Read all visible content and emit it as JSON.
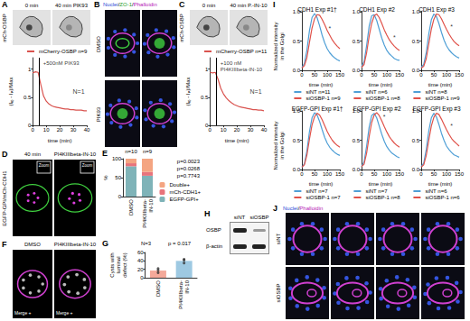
{
  "images": [
    {
      "panel": "A",
      "channel": "mCh-OSBP",
      "frames": [
        "0 min",
        "40 min PIK93"
      ]
    },
    {
      "panel": "B",
      "title": "Nuclei/ZO-1/Phalloidin",
      "rows": [
        "DMSO",
        "PIK93"
      ]
    },
    {
      "panel": "C",
      "channel": "mCh-OSBP",
      "frames": [
        "0 min",
        "40 min P.-IN-10"
      ]
    },
    {
      "panel": "D",
      "channel": "EGFP-GPI/mCh-CDH1",
      "frames": [
        "40 min",
        "PI4KIIIbeta-IN-10"
      ],
      "inset": "Zoom"
    },
    {
      "panel": "F",
      "frames": [
        "DMSO",
        "PI4KIIIbeta-IN-10"
      ],
      "inset": "Merge +"
    },
    {
      "panel": "H",
      "columns": [
        "siNT",
        "siOSBP"
      ],
      "rows": [
        "OSBP",
        "β-actin"
      ]
    },
    {
      "panel": "J",
      "title": "Nuclei/Phalloidin",
      "rows": [
        "siNT",
        "siOSBP"
      ]
    }
  ],
  "chart_data": [
    {
      "type": "line",
      "xlabel": "time (min)",
      "ylabel": "(Iₜ₀ - Iₜₓ)/Max",
      "x": [
        0,
        2,
        4,
        6,
        8,
        10,
        12,
        14,
        16,
        18,
        20,
        22,
        24,
        26,
        28,
        30,
        32,
        34,
        36,
        38,
        40
      ],
      "xlim": [
        0,
        40
      ],
      "xticks": [
        0,
        10,
        20,
        30,
        40
      ],
      "ylim": [
        0,
        1.2
      ],
      "yticks": [
        0,
        0.5,
        1
      ],
      "series": [
        {
          "name": "mCherry-OSBP n=9",
          "color": "#d9534f",
          "values": [
            0.93,
            0.95,
            0.94,
            0.72,
            0.52,
            0.43,
            0.38,
            0.35,
            0.33,
            0.32,
            0.31,
            0.3,
            0.29,
            0.29,
            0.28,
            0.28,
            0.27,
            0.27,
            0.27,
            0.26,
            0.26
          ]
        }
      ],
      "event": {
        "x": 5,
        "label": "+500nM PIK93"
      },
      "annotations": [
        {
          "text": "N=1",
          "x": 34,
          "y": 0.6
        }
      ],
      "legend": "top"
    },
    {
      "type": "line",
      "xlabel": "time (min)",
      "ylabel": "(Iₜ₀ - Iₜₓ)/Max",
      "x": [
        0,
        2,
        4,
        6,
        8,
        10,
        12,
        14,
        16,
        18,
        20,
        22,
        24,
        26,
        28,
        30,
        32,
        34,
        36,
        38,
        40
      ],
      "xlim": [
        0,
        40
      ],
      "xticks": [
        0,
        10,
        20,
        30,
        40
      ],
      "ylim": [
        0,
        1.2
      ],
      "yticks": [
        0,
        0.5,
        1
      ],
      "series": [
        {
          "name": "mCherry-OSBP n=11",
          "color": "#d9534f",
          "values": [
            0.94,
            0.93,
            0.94,
            0.82,
            0.66,
            0.56,
            0.49,
            0.44,
            0.4,
            0.37,
            0.35,
            0.33,
            0.32,
            0.31,
            0.3,
            0.29,
            0.28,
            0.28,
            0.27,
            0.27,
            0.26
          ]
        }
      ],
      "event": {
        "x": 5,
        "label": "+100 nM PI4KIIIbeta-IN-10"
      },
      "annotations": [
        {
          "text": "N=1",
          "x": 34,
          "y": 0.6
        }
      ],
      "legend": "top"
    },
    {
      "type": "bar",
      "panel": "E",
      "stacked": true,
      "categories": [
        "DMSO",
        "PI4KIIIbeta-IN-10"
      ],
      "ylabel": "%",
      "ylim": [
        0,
        100
      ],
      "yticks": [
        0,
        50,
        100
      ],
      "series": [
        {
          "name": "EGFP-GPI+",
          "color": "#7fb3b8",
          "values": [
            80,
            55
          ]
        },
        {
          "name": "mCh-CDH1+",
          "color": "#e8747c",
          "values": [
            8,
            10
          ]
        },
        {
          "name": "Double+",
          "color": "#f4a582",
          "values": [
            12,
            35
          ]
        }
      ],
      "bar_labels": [
        "n=10",
        "n=9"
      ],
      "p_values": [
        "p=0.0023",
        "p=0.0268",
        "p=0.7743"
      ],
      "legend": "right"
    },
    {
      "type": "bar",
      "panel": "G",
      "categories": [
        "DMSO",
        "PI4KIIIbeta-IN-10"
      ],
      "values": [
        17,
        40
      ],
      "colors": [
        "#f4a99a",
        "#9ec9e2"
      ],
      "points": [
        [
          12,
          18,
          22
        ],
        [
          35,
          42,
          44
        ]
      ],
      "ylabel": "Cysts with luminal defect (%)",
      "ylim": [
        0,
        60
      ],
      "yticks": [
        0,
        20,
        40,
        60
      ],
      "annotations": [
        "N=3",
        "p = 0.017"
      ]
    },
    {
      "type": "line",
      "panel": "I",
      "title": "CDH1 Exp #1†",
      "xlabel": "time (min)",
      "ylabel": "Normalized intensity in the Golgi",
      "x": [
        0,
        10,
        20,
        30,
        40,
        50,
        60,
        70,
        80,
        90,
        100,
        110,
        120,
        130,
        140,
        150
      ],
      "xlim": [
        0,
        150
      ],
      "xticks": [
        0,
        50,
        100,
        150
      ],
      "ylim": [
        0,
        1
      ],
      "yticks": [
        {
          "value": 0,
          "label": "0.0"
        },
        0.5,
        {
          "value": 1,
          "label": "1.0"
        }
      ],
      "series": [
        {
          "name": "siNT n=11",
          "color": "#4f9fd6",
          "values": [
            0.05,
            0.12,
            0.35,
            0.68,
            0.9,
            0.97,
            0.9,
            0.76,
            0.6,
            0.47,
            0.37,
            0.3,
            0.25,
            0.21,
            0.18,
            0.16
          ]
        },
        {
          "name": "siOSBP-1 n=9",
          "color": "#e0524a",
          "values": [
            0.04,
            0.08,
            0.22,
            0.48,
            0.72,
            0.88,
            0.95,
            0.94,
            0.87,
            0.78,
            0.68,
            0.6,
            0.52,
            0.46,
            0.41,
            0.37
          ]
        }
      ],
      "annotations": [
        {
          "text": "*",
          "x": 110,
          "y": 0.72
        }
      ],
      "legend": "bottom"
    },
    {
      "type": "line",
      "title": "CDH1 Exp #2",
      "xlabel": "time (min)",
      "x": [
        0,
        10,
        20,
        30,
        40,
        50,
        60,
        70,
        80,
        90,
        100,
        110,
        120,
        130,
        140,
        150
      ],
      "xlim": [
        0,
        150
      ],
      "xticks": [
        0,
        50,
        100,
        150
      ],
      "ylim": [
        0,
        1
      ],
      "yticks": [
        {
          "value": 0,
          "label": "0.0"
        },
        0.5,
        {
          "value": 1,
          "label": "1.0"
        }
      ],
      "series": [
        {
          "name": "siNT n=6",
          "color": "#4f9fd6",
          "values": [
            0.06,
            0.15,
            0.42,
            0.75,
            0.93,
            0.95,
            0.85,
            0.7,
            0.55,
            0.43,
            0.34,
            0.28,
            0.24,
            0.2,
            0.18,
            0.17
          ]
        },
        {
          "name": "siOSBP-1 n=8",
          "color": "#e0524a",
          "values": [
            0.05,
            0.1,
            0.3,
            0.58,
            0.8,
            0.93,
            0.96,
            0.9,
            0.8,
            0.69,
            0.6,
            0.52,
            0.46,
            0.41,
            0.37,
            0.34
          ]
        }
      ],
      "annotations": [
        {
          "text": "*",
          "x": 130,
          "y": 0.56
        }
      ],
      "legend": "bottom"
    },
    {
      "type": "line",
      "title": "CDH1 Exp #3",
      "xlabel": "time (min)",
      "x": [
        0,
        10,
        20,
        30,
        40,
        50,
        60,
        70,
        80,
        90,
        100,
        110,
        120,
        130,
        140,
        150
      ],
      "xlim": [
        0,
        150
      ],
      "xticks": [
        0,
        50,
        100,
        150
      ],
      "ylim": [
        0,
        1
      ],
      "yticks": [
        {
          "value": 0,
          "label": "0.0"
        },
        0.5,
        {
          "value": 1,
          "label": "1.0"
        }
      ],
      "series": [
        {
          "name": "siNT n=8",
          "color": "#4f9fd6",
          "values": [
            0.05,
            0.1,
            0.3,
            0.62,
            0.86,
            0.96,
            0.92,
            0.8,
            0.65,
            0.52,
            0.42,
            0.35,
            0.3,
            0.26,
            0.23,
            0.21
          ]
        },
        {
          "name": "siOSBP-1 n=9",
          "color": "#e0524a",
          "values": [
            0.04,
            0.07,
            0.2,
            0.45,
            0.7,
            0.87,
            0.96,
            0.95,
            0.88,
            0.79,
            0.7,
            0.62,
            0.55,
            0.49,
            0.45,
            0.42
          ]
        }
      ],
      "annotations": [
        {
          "text": "*",
          "x": 120,
          "y": 0.75
        }
      ],
      "legend": "bottom"
    },
    {
      "type": "line",
      "title": "EGFP-GPI Exp #1†",
      "xlabel": "time (min)",
      "ylabel": "Normalized intensity in the Golgi",
      "x": [
        0,
        10,
        20,
        30,
        40,
        50,
        60,
        70,
        80,
        90,
        100,
        110,
        120,
        130,
        140,
        150
      ],
      "xlim": [
        0,
        150
      ],
      "xticks": [
        0,
        50,
        100,
        150
      ],
      "ylim": [
        0,
        1
      ],
      "yticks": [
        {
          "value": 0,
          "label": "0.0"
        },
        0.5,
        {
          "value": 1,
          "label": "1.0"
        }
      ],
      "series": [
        {
          "name": "siNT n=7",
          "color": "#4f9fd6",
          "values": [
            0.04,
            0.1,
            0.32,
            0.65,
            0.88,
            0.97,
            0.93,
            0.82,
            0.68,
            0.55,
            0.45,
            0.38,
            0.33,
            0.29,
            0.26,
            0.24
          ]
        },
        {
          "name": "siOSBP-1 n=7",
          "color": "#e0524a",
          "values": [
            0.04,
            0.08,
            0.25,
            0.52,
            0.76,
            0.9,
            0.96,
            0.93,
            0.85,
            0.75,
            0.65,
            0.57,
            0.5,
            0.45,
            0.41,
            0.38
          ]
        }
      ],
      "legend": "bottom"
    },
    {
      "type": "line",
      "title": "EGFP-GPI Exp #2",
      "xlabel": "time (min)",
      "x": [
        0,
        10,
        20,
        30,
        40,
        50,
        60,
        70,
        80,
        90,
        100,
        110,
        120,
        130,
        140,
        150
      ],
      "xlim": [
        0,
        150
      ],
      "xticks": [
        0,
        50,
        100,
        150
      ],
      "ylim": [
        0,
        1
      ],
      "yticks": [
        {
          "value": 0,
          "label": "0.0"
        },
        0.5,
        {
          "value": 1,
          "label": "1.0"
        }
      ],
      "series": [
        {
          "name": "siNT n=7",
          "color": "#4f9fd6",
          "values": [
            0.05,
            0.13,
            0.4,
            0.72,
            0.92,
            0.96,
            0.88,
            0.74,
            0.6,
            0.48,
            0.39,
            0.33,
            0.28,
            0.25,
            0.22,
            0.2
          ]
        },
        {
          "name": "siOSBP-1 n=8",
          "color": "#e0524a",
          "values": [
            0.05,
            0.09,
            0.28,
            0.56,
            0.8,
            0.93,
            0.97,
            0.92,
            0.83,
            0.73,
            0.64,
            0.56,
            0.5,
            0.45,
            0.41,
            0.38
          ]
        }
      ],
      "annotations": [
        {
          "text": "*",
          "x": 90,
          "y": 0.9
        }
      ],
      "legend": "bottom"
    },
    {
      "type": "line",
      "title": "EGFP-GPI Exp #3",
      "xlabel": "time (min)",
      "x": [
        0,
        10,
        20,
        30,
        40,
        50,
        60,
        70,
        80,
        90,
        100,
        110,
        120,
        130,
        140,
        150
      ],
      "xlim": [
        0,
        150
      ],
      "xticks": [
        0,
        50,
        100,
        150
      ],
      "ylim": [
        0,
        1
      ],
      "yticks": [
        {
          "value": 0,
          "label": "0.0"
        },
        0.5,
        {
          "value": 1,
          "label": "1.0"
        }
      ],
      "series": [
        {
          "name": "siNT n=6",
          "color": "#4f9fd6",
          "values": [
            0.05,
            0.11,
            0.34,
            0.66,
            0.88,
            0.96,
            0.9,
            0.77,
            0.62,
            0.5,
            0.4,
            0.34,
            0.29,
            0.25,
            0.23,
            0.21
          ]
        },
        {
          "name": "siOSBP-1 n=6",
          "color": "#e0524a",
          "values": [
            0.04,
            0.08,
            0.24,
            0.5,
            0.74,
            0.89,
            0.96,
            0.94,
            0.86,
            0.77,
            0.68,
            0.6,
            0.53,
            0.48,
            0.44,
            0.4
          ]
        }
      ],
      "annotations": [
        {
          "text": "*",
          "x": 120,
          "y": 0.75
        }
      ],
      "legend": "bottom"
    }
  ]
}
